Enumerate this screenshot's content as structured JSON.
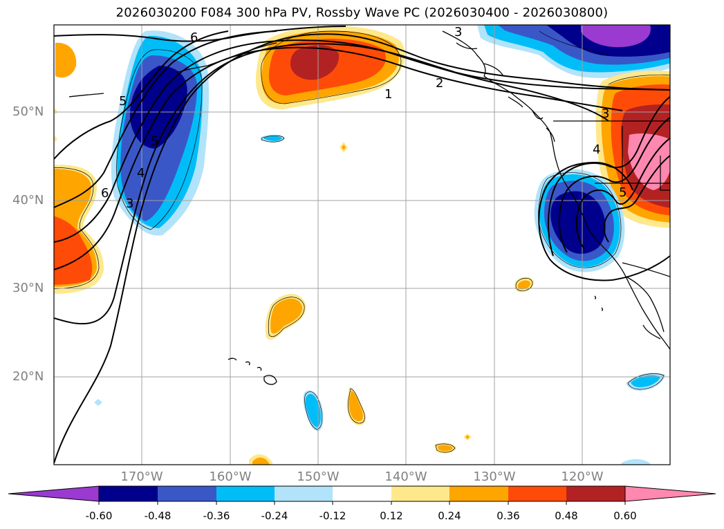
{
  "title": "2026030200 F084 300 hPa PV, Rossby Wave PC (2026030400 - 2026030800)",
  "map": {
    "lat_labels": [
      "50°N",
      "40°N",
      "30°N",
      "20°N"
    ],
    "lon_labels": [
      "170°W",
      "160°W",
      "150°W",
      "140°W",
      "130°W",
      "120°W"
    ],
    "contour_labels": [
      "6",
      "5",
      "5",
      "4",
      "6",
      "3",
      "3",
      "2",
      "1",
      "3",
      "4",
      "5"
    ]
  },
  "colorbar": {
    "tick_labels": [
      "-0.60",
      "-0.48",
      "-0.36",
      "-0.24",
      "-0.12",
      "0.12",
      "0.24",
      "0.36",
      "0.48",
      "0.60"
    ],
    "colors": {
      "lt_min060": "#9a3ad0",
      "min060_min048": "#00008c",
      "min048_min036": "#3a57c8",
      "min036_min024": "#00bdf8",
      "min024_min012": "#b1e3fa",
      "min012_012": "#ffffff",
      "p012_p024": "#fee88b",
      "p024_p036": "#ffa500",
      "p036_p048": "#fe4b08",
      "p048_p060": "#b32222",
      "gt_p060": "#ff88b0"
    }
  }
}
